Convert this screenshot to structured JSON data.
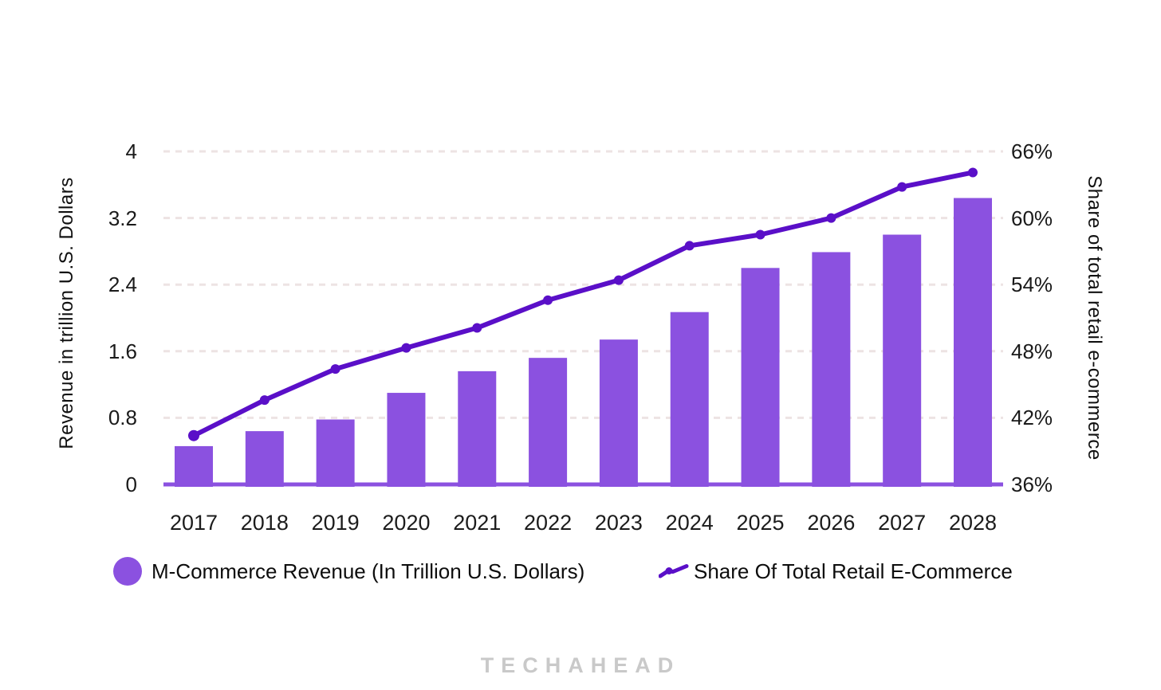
{
  "page": {
    "background": "#ffffff"
  },
  "footer": {
    "brand": "TECHAHEAD"
  },
  "legend": [
    {
      "marker": "circle",
      "label": "M-Commerce Revenue (In Trillion U.S. Dollars)"
    },
    {
      "marker": "line-dot",
      "label": "Share Of Total Retail E-Commerce"
    }
  ],
  "chart_data": {
    "type": "combo-bar-line",
    "categories": [
      "2017",
      "2018",
      "2019",
      "2020",
      "2021",
      "2022",
      "2023",
      "2024",
      "2025",
      "2026",
      "2027",
      "2028"
    ],
    "series": [
      {
        "name": "M-Commerce Revenue (In Trillion U.S. Dollars)",
        "type": "bar",
        "axis": "left",
        "color": "#8B51E0",
        "values": [
          0.46,
          0.64,
          0.78,
          1.1,
          1.36,
          1.52,
          1.74,
          2.07,
          2.6,
          2.79,
          3.0,
          3.44
        ]
      },
      {
        "name": "Share Of Total Retail E-Commerce",
        "type": "line",
        "axis": "right",
        "color": "#5A0FC8",
        "values": [
          40.4,
          43.6,
          46.4,
          48.3,
          50.1,
          52.6,
          54.4,
          57.5,
          58.5,
          60.0,
          62.8,
          64.1
        ]
      }
    ],
    "left_axis": {
      "label": "Revenue in trillion U.S. Dollars",
      "min": 0,
      "max": 4,
      "ticks": [
        "0",
        "0.8",
        "1.6",
        "2.4",
        "3.2",
        "4"
      ]
    },
    "right_axis": {
      "label": "Share of total retail e-commerce",
      "min": 36,
      "max": 66,
      "ticks": [
        "36%",
        "42%",
        "48%",
        "54%",
        "60%",
        "66%"
      ]
    },
    "grid": {
      "horizontal": true,
      "style": "dashed",
      "color": "#EDE3E3"
    },
    "baseline_color": "#8B51E0",
    "legend_position": "bottom"
  }
}
